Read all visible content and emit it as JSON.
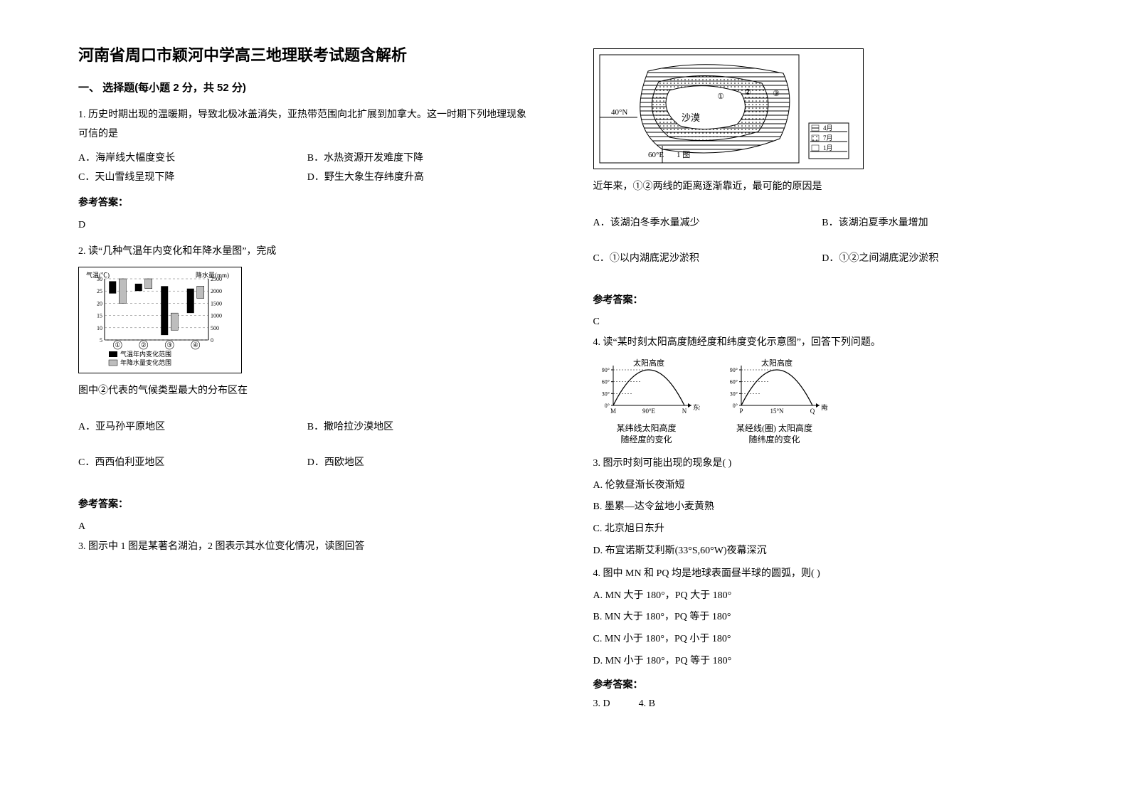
{
  "title": "河南省周口市颖河中学高三地理联考试题含解析",
  "section1": "一、 选择题(每小题 2 分，共 52 分)",
  "answer_label": "参考答案：",
  "q1": {
    "stem": "1. 历史时期出现的温暖期，导致北极冰盖消失，亚热带范围向北扩展到加拿大。这一时期下列地理现象可信的是",
    "A": "A．海岸线大幅度变长",
    "B": "B．水热资源开发难度下降",
    "C": "C．天山雪线呈现下降",
    "D": "D．野生大象生存纬度升高",
    "ans": "D"
  },
  "q2": {
    "stem": "2. 读“几种气温年内变化和年降水量图”，完成",
    "subhead": "图中②代表的气候类型最大的分布区在",
    "A": "A．亚马孙平原地区",
    "B": "B．撒哈拉沙漠地区",
    "C": "C．西西伯利亚地区",
    "D": "D．西欧地区",
    "ans": "A",
    "chart": {
      "type": "dual-axis-range",
      "y1_label": "气温(℃)",
      "y2_label": "降水量(mm)",
      "y1_ticks": [
        5,
        10,
        15,
        20,
        25,
        30
      ],
      "y2_ticks": [
        0,
        500,
        1000,
        1500,
        2000,
        2500
      ],
      "categories": [
        "①",
        "②",
        "③",
        "④"
      ],
      "temp_ranges": [
        [
          24,
          29
        ],
        [
          25,
          28
        ],
        [
          7,
          27
        ],
        [
          16,
          26
        ]
      ],
      "precip_ranges": [
        [
          1500,
          2500
        ],
        [
          2100,
          2500
        ],
        [
          400,
          1100
        ],
        [
          1700,
          2200
        ]
      ],
      "temp_color": "#000000",
      "precip_color": "#bdbdbd",
      "legend_temp": "气温年内变化范围",
      "legend_precip": "年降水量变化范围",
      "bg": "#ffffff",
      "grid": "#666666"
    }
  },
  "q3l": {
    "stem": "3. 图示中 1 图是某著名湖泊，2 图表示其水位变化情况，读图回答"
  },
  "q3r": {
    "stem": "近年来，①②两线的距离逐渐靠近，最可能的原因是",
    "A": "A．该湖泊冬季水量减少",
    "B": "B．该湖泊夏季水量增加",
    "C": "C．①以内湖底泥沙淤积",
    "D": "D．①②之间湖底泥沙淤积",
    "ans": "C",
    "lake_chart": {
      "type": "map-diagram",
      "lat_label": "40°N",
      "lon_label": "60°E",
      "map_label": "1 图",
      "desert_label": "沙漠",
      "markers": [
        "①",
        "②",
        "③"
      ],
      "water_color": "#ffffff",
      "hatch_color": "#000000",
      "dot_color": "#000000",
      "bg": "#ffffff",
      "panel2_months": [
        "4月",
        "7月",
        "1月"
      ]
    }
  },
  "q4": {
    "stem": "4. 读“某时刻太阳高度随经度和纬度变化示意图”，回答下列问题。",
    "left_title": "太阳高度",
    "right_title": "太阳高度",
    "left_x": "东经度",
    "right_x": "南纬度",
    "left_caption": "某纬线太阳高度\n随经度的变化",
    "right_caption": "某经线(圈) 太阳高度\n随纬度的变化",
    "y_ticks": [
      "0°",
      "30°",
      "60°",
      "90°"
    ],
    "left_marks": {
      "M": "M",
      "mid": "90°E",
      "N": "N"
    },
    "right_marks": {
      "P": "P",
      "mid": "15°N",
      "Q": "Q"
    },
    "line_color": "#000000",
    "sub3": {
      "stem": "3.  图示时刻可能出现的现象是(     )",
      "A": "A.  伦敦昼渐长夜渐短",
      "B": "B.  墨累—达令盆地小麦黄熟",
      "C": "C.  北京旭日东升",
      "D": "D.  布宜诺斯艾利斯(33°S,60°W)夜幕深沉"
    },
    "sub4": {
      "stem": "4.  图中 MN 和 PQ 均是地球表面昼半球的圆弧，则(     )",
      "A": "A.  MN 大于 180°，PQ 大于 180°",
      "B": "B.  MN 大于 180°，PQ 等于 180°",
      "C": "C.  MN 小于 180°，PQ 小于 180°",
      "D": "D.  MN 小于 180°，PQ 等于 180°"
    },
    "ans3": "3.  D",
    "ans4": "4.  B"
  }
}
